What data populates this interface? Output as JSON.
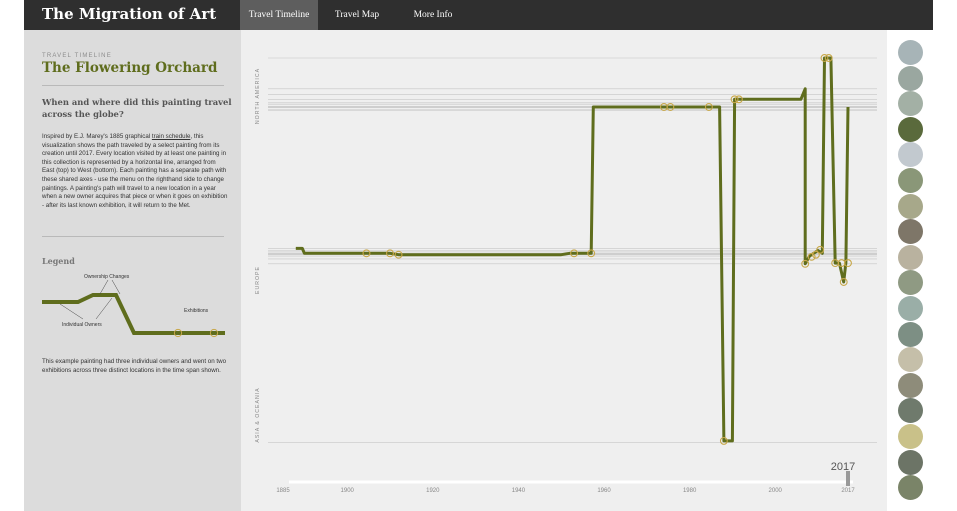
{
  "header": {
    "brand": "The Migration of Art",
    "tabs": [
      {
        "label": "Travel Timeline",
        "active": true
      },
      {
        "label": "Travel Map",
        "active": false
      },
      {
        "label": "More Info",
        "active": false
      }
    ]
  },
  "sidebar": {
    "overline": "TRAVEL TIMELINE",
    "title": "The Flowering Orchard",
    "question": "When and where did this painting travel across the globe?",
    "description_before_link": "Inspired by E.J. Marey's 1885 graphical ",
    "description_link": "train schedule",
    "description_after_link": ", this visualization shows the path traveled by a select painting from its creation until 2017. Every location visited by at least one painting in this collection is represented by a horizontal line, arranged from East (top) to West (bottom). Each painting has a separate path with these shared axes - use the menu on the righthand side to change paintings. A painting's path will travel to a new location in a year when a new owner acquires that piece or when it goes on exhibition - after its last known exhibition, it will return to the Met.",
    "legend_title": "Legend",
    "legend_labels": {
      "ownership": "Ownership Changes",
      "owners": "Individual Owners",
      "exhibitions": "Exhibitions"
    },
    "example_text": "This example painting had three individual owners and went on two exhibitions across three distinct locations in the time span shown."
  },
  "colors": {
    "path": "#5f6d1d",
    "marker": "#c8a84a",
    "navbar": "#2f2f2f",
    "active_tab": "#5e5e5e",
    "sidebar_bg": "#dcdcdc",
    "chart_bg": "#efefef"
  },
  "chart_data": {
    "type": "line",
    "series_count": 1,
    "x_ticks": [
      1885,
      1900,
      1920,
      1940,
      1960,
      1980,
      2000,
      2017
    ],
    "xlim": [
      1885,
      2017
    ],
    "slider_label": "2017",
    "regions": [
      "NORTH AMERICA",
      "EUROPE",
      "ASIA & OCEANIA"
    ],
    "location_levels": [
      0.0,
      0.44,
      0.52,
      0.59,
      0.64,
      0.66,
      0.69,
      0.7,
      0.71,
      0.74,
      0.75,
      2.72,
      2.75,
      2.77,
      2.79,
      2.8,
      2.81,
      2.83,
      2.87,
      2.94,
      5.49
    ],
    "path": [
      [
        1888,
        2.72
      ],
      [
        1889.5,
        2.72
      ],
      [
        1890,
        2.79
      ],
      [
        1900,
        2.79
      ],
      [
        1905,
        2.79
      ],
      [
        1910,
        2.79
      ],
      [
        1912,
        2.81
      ],
      [
        1933,
        2.81
      ],
      [
        1950,
        2.81
      ],
      [
        1952,
        2.79
      ],
      [
        1957,
        2.79
      ],
      [
        1957.5,
        0.7
      ],
      [
        1974,
        0.7
      ],
      [
        1975,
        0.7
      ],
      [
        1984,
        0.7
      ],
      [
        1987,
        0.7
      ],
      [
        1988,
        5.47
      ],
      [
        1990,
        5.47
      ],
      [
        1990.5,
        0.59
      ],
      [
        1991.5,
        0.59
      ],
      [
        2006,
        0.59
      ],
      [
        2007,
        0.44
      ],
      [
        2007,
        2.94
      ],
      [
        2008,
        2.83
      ],
      [
        2009,
        2.79
      ],
      [
        2010,
        2.75
      ],
      [
        2011,
        2.79
      ],
      [
        2011.5,
        0.0
      ],
      [
        2013,
        0.0
      ],
      [
        2014,
        2.93
      ],
      [
        2015,
        2.93
      ],
      [
        2016,
        3.2
      ],
      [
        2016.5,
        2.92
      ],
      [
        2017,
        0.7
      ]
    ],
    "exhibition_markers": [
      [
        1904.5,
        2.79
      ],
      [
        1910,
        2.79
      ],
      [
        1912,
        2.81
      ],
      [
        1953,
        2.79
      ],
      [
        1957,
        2.79
      ],
      [
        1974,
        0.7
      ],
      [
        1975.5,
        0.7
      ],
      [
        1984.5,
        0.7
      ],
      [
        1988,
        5.47
      ],
      [
        1990.5,
        0.59
      ],
      [
        1991.5,
        0.59
      ],
      [
        2007,
        2.94
      ],
      [
        2008.5,
        2.84
      ],
      [
        2009.5,
        2.81
      ],
      [
        2010.5,
        2.74
      ],
      [
        2011.5,
        0.0
      ],
      [
        2012.5,
        0.0
      ],
      [
        2014,
        2.93
      ],
      [
        2015.5,
        2.93
      ],
      [
        2016,
        3.2
      ],
      [
        2017,
        2.93
      ]
    ]
  },
  "thumbnails": [
    {
      "color": "#a7b4b7"
    },
    {
      "color": "#9aa7a0"
    },
    {
      "color": "#a3b0a5"
    },
    {
      "color": "#5a6a3c"
    },
    {
      "color": "#c2c9cf"
    },
    {
      "color": "#8a9778"
    },
    {
      "color": "#a7a88a"
    },
    {
      "color": "#7e7668"
    },
    {
      "color": "#b9b29f"
    },
    {
      "color": "#8f9a83"
    },
    {
      "color": "#9aaea7"
    },
    {
      "color": "#7d8f84"
    },
    {
      "color": "#c5bfa9"
    },
    {
      "color": "#8e8c7a"
    },
    {
      "color": "#6f7a6c"
    },
    {
      "color": "#c9c189"
    },
    {
      "color": "#6c7466"
    },
    {
      "color": "#7a8468"
    }
  ]
}
